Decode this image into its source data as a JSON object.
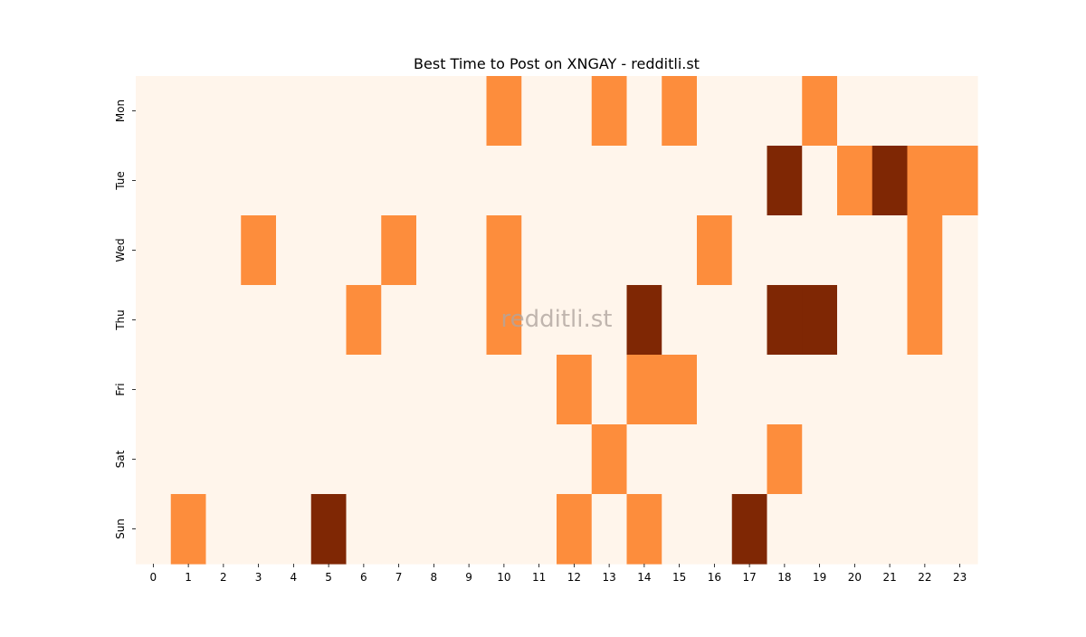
{
  "chart_data": {
    "type": "heatmap",
    "title": "Best Time to Post on XNGAY - redditli.st",
    "watermark": "redditli.st",
    "xlabel": "",
    "ylabel": "",
    "x_categories": [
      "0",
      "1",
      "2",
      "3",
      "4",
      "5",
      "6",
      "7",
      "8",
      "9",
      "10",
      "11",
      "12",
      "13",
      "14",
      "15",
      "16",
      "17",
      "18",
      "19",
      "20",
      "21",
      "22",
      "23"
    ],
    "y_categories": [
      "Mon",
      "Tue",
      "Wed",
      "Thu",
      "Fri",
      "Sat",
      "Sun"
    ],
    "values": [
      [
        0,
        0,
        0,
        0,
        0,
        0,
        0,
        0,
        0,
        0,
        1,
        0,
        0,
        1,
        0,
        1,
        0,
        0,
        0,
        1,
        0,
        0,
        0,
        0
      ],
      [
        0,
        0,
        0,
        0,
        0,
        0,
        0,
        0,
        0,
        0,
        0,
        0,
        0,
        0,
        0,
        0,
        0,
        0,
        2,
        0,
        1,
        2,
        1,
        1
      ],
      [
        0,
        0,
        0,
        1,
        0,
        0,
        0,
        1,
        0,
        0,
        1,
        0,
        0,
        0,
        0,
        0,
        1,
        0,
        0,
        0,
        0,
        0,
        1,
        0
      ],
      [
        0,
        0,
        0,
        0,
        0,
        0,
        1,
        0,
        0,
        0,
        1,
        0,
        0,
        0,
        2,
        0,
        0,
        0,
        2,
        2,
        0,
        0,
        1,
        0
      ],
      [
        0,
        0,
        0,
        0,
        0,
        0,
        0,
        0,
        0,
        0,
        0,
        0,
        1,
        0,
        1,
        1,
        0,
        0,
        0,
        0,
        0,
        0,
        0,
        0
      ],
      [
        0,
        0,
        0,
        0,
        0,
        0,
        0,
        0,
        0,
        0,
        0,
        0,
        0,
        1,
        0,
        0,
        0,
        0,
        1,
        0,
        0,
        0,
        0,
        0
      ],
      [
        0,
        1,
        0,
        0,
        0,
        2,
        0,
        0,
        0,
        0,
        0,
        0,
        1,
        0,
        1,
        0,
        0,
        2,
        0,
        0,
        0,
        0,
        0,
        0
      ]
    ],
    "colormap": [
      "#fff5eb",
      "#fd8d3c",
      "#7f2704"
    ],
    "grid": false,
    "legend": "none"
  }
}
